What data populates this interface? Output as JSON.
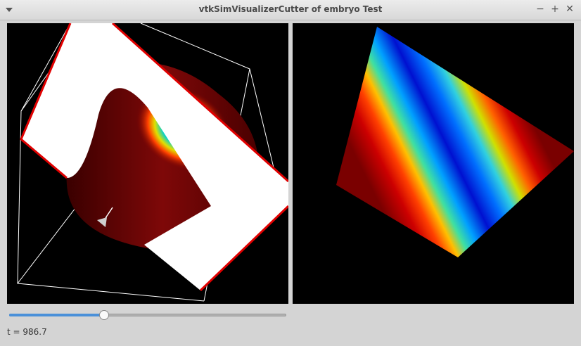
{
  "window": {
    "title": "vtkSimVisualizerCutter of embryo Test",
    "menu_icon": "chevron-down-icon",
    "controls": {
      "minimize": "−",
      "maximize": "+",
      "close": "✕"
    }
  },
  "views": {
    "left": {
      "name": "3d-cutter-view"
    },
    "right": {
      "name": "slice-view"
    }
  },
  "slider": {
    "value": 0.34
  },
  "status": {
    "time_label": "t = 986.7"
  },
  "colors": {
    "cut_plane_edge": "#e00000",
    "background": "#000000",
    "field_high": "#7a0000",
    "field_low": "#0000c8"
  }
}
